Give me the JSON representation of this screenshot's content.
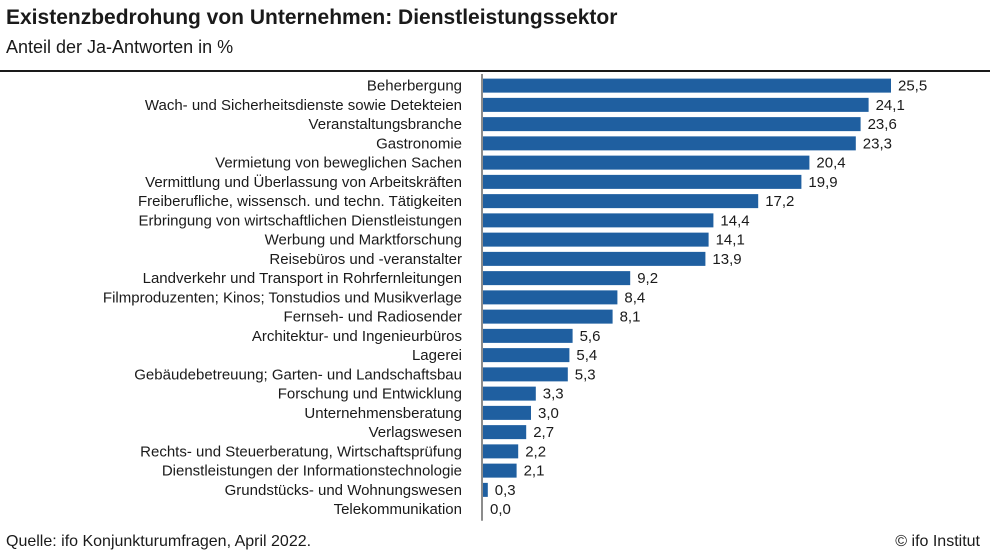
{
  "title": "Existenzbedrohung von Unternehmen: Dienstleistungssektor",
  "subtitle": "Anteil der Ja-Antworten in %",
  "footer": {
    "source": "Quelle: ifo Konjunkturumfragen, April 2022.",
    "copyright": "© ifo Institut"
  },
  "chart_data": {
    "type": "bar",
    "orientation": "horizontal",
    "bar_color": "#1f5fa0",
    "decimal_separator": ",",
    "xlim": [
      0,
      27
    ],
    "grid": false,
    "categories": [
      "Beherbergung",
      "Wach- und Sicherheitsdienste sowie Detekteien",
      "Veranstaltungsbranche",
      "Gastronomie",
      "Vermietung von beweglichen Sachen",
      "Vermittlung und Überlassung von Arbeitskräften",
      "Freiberufliche, wissensch. und techn. Tätigkeiten",
      "Erbringung von wirtschaftlichen Dienstleistungen",
      "Werbung und Marktforschung",
      "Reisebüros und -veranstalter",
      "Landverkehr und Transport in Rohrfernleitungen",
      "Filmproduzenten; Kinos; Tonstudios und Musikverlage",
      "Fernseh- und Radiosender",
      "Architektur- und Ingenieurbüros",
      "Lagerei",
      "Gebäudebetreuung; Garten- und Landschaftsbau",
      "Forschung und Entwicklung",
      "Unternehmensberatung",
      "Verlagswesen",
      "Rechts- und Steuerberatung, Wirtschaftsprüfung",
      "Dienstleistungen der Informationstechnologie",
      "Grundstücks- und Wohnungswesen",
      "Telekommunikation"
    ],
    "values": [
      25.5,
      24.1,
      23.6,
      23.3,
      20.4,
      19.9,
      17.2,
      14.4,
      14.1,
      13.9,
      9.2,
      8.4,
      8.1,
      5.6,
      5.4,
      5.3,
      3.3,
      3.0,
      2.7,
      2.2,
      2.1,
      0.3,
      0.0
    ]
  }
}
